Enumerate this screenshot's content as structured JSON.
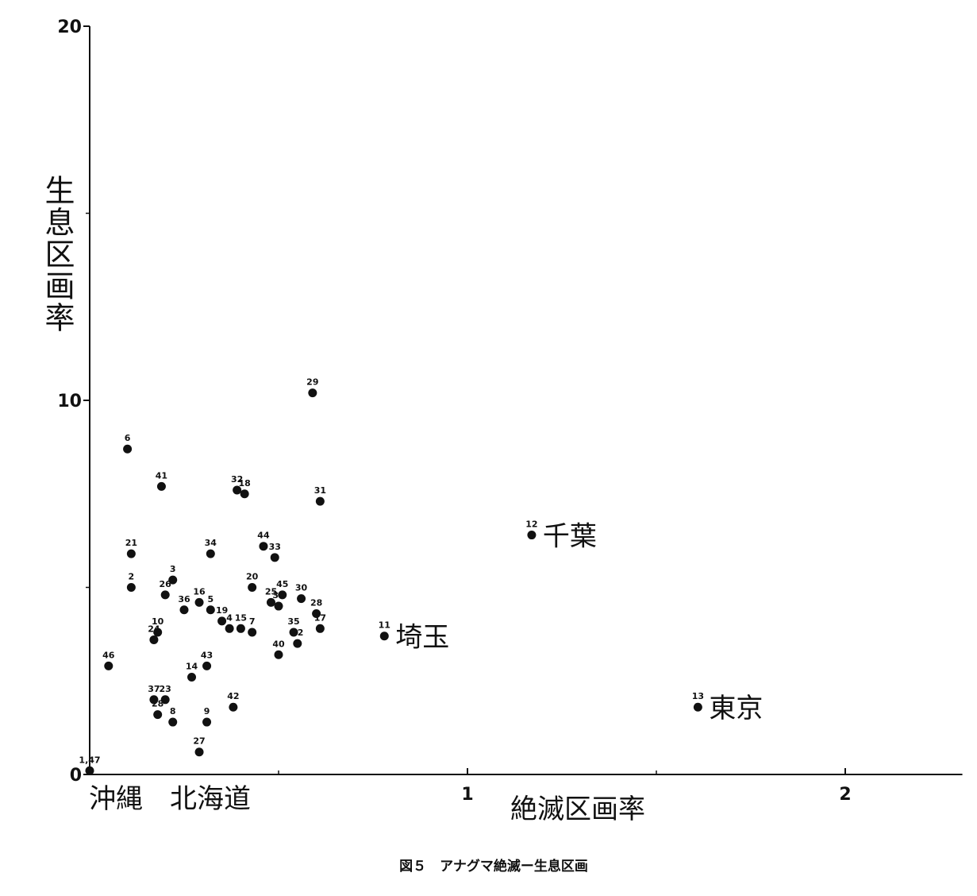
{
  "chart_data": {
    "type": "scatter",
    "xlabel": "絶滅区画率",
    "ylabel": "生息区画率",
    "caption": "図５　アナグマ絶滅ー生息区画",
    "x_axis_note": "沖縄　北海道",
    "xlim": [
      0,
      2.31
    ],
    "ylim": [
      0,
      20
    ],
    "xticks": [
      1,
      2
    ],
    "yticks": [
      0,
      10,
      20
    ],
    "xminor": [
      0.5,
      1.5
    ],
    "yminor": [
      5,
      15
    ],
    "color": "#111",
    "point_labels": [
      "1,47",
      "46",
      "6",
      "41",
      "21",
      "2",
      "3",
      "26",
      "36",
      "16",
      "5",
      "19",
      "4",
      "15",
      "7",
      "10",
      "24",
      "14",
      "43",
      "37",
      "23",
      "28",
      "8",
      "9",
      "27",
      "42",
      "34",
      "32",
      "18",
      "29",
      "31",
      "44",
      "33",
      "20",
      "45",
      "25",
      "39",
      "30",
      "28",
      "17",
      "35",
      "22",
      "40",
      "11",
      "12",
      "13"
    ],
    "place_names": [
      null,
      null,
      null,
      null,
      null,
      null,
      null,
      null,
      null,
      null,
      null,
      null,
      null,
      null,
      null,
      null,
      null,
      null,
      null,
      null,
      null,
      null,
      null,
      null,
      null,
      null,
      null,
      null,
      null,
      null,
      null,
      null,
      null,
      null,
      null,
      null,
      null,
      null,
      null,
      null,
      null,
      null,
      null,
      "埼玉",
      "千葉",
      "東京"
    ],
    "x": [
      0.0,
      0.05,
      0.1,
      0.19,
      0.11,
      0.11,
      0.22,
      0.2,
      0.25,
      0.29,
      0.32,
      0.35,
      0.37,
      0.4,
      0.43,
      0.18,
      0.17,
      0.27,
      0.31,
      0.17,
      0.2,
      0.18,
      0.22,
      0.31,
      0.29,
      0.38,
      0.32,
      0.39,
      0.41,
      0.59,
      0.61,
      0.46,
      0.49,
      0.43,
      0.51,
      0.48,
      0.5,
      0.56,
      0.6,
      0.61,
      0.54,
      0.55,
      0.5,
      0.78,
      1.17,
      1.61
    ],
    "values": [
      0.1,
      2.9,
      8.7,
      7.7,
      5.9,
      5.0,
      5.2,
      4.8,
      4.4,
      4.6,
      4.4,
      4.1,
      3.9,
      3.9,
      3.8,
      3.8,
      3.6,
      2.6,
      2.9,
      2.0,
      2.0,
      1.6,
      1.4,
      1.4,
      0.6,
      1.8,
      5.9,
      7.6,
      7.5,
      10.2,
      7.3,
      6.1,
      5.8,
      5.0,
      4.8,
      4.6,
      4.5,
      4.7,
      4.3,
      3.9,
      3.8,
      3.5,
      3.2,
      3.7,
      6.4,
      1.8
    ]
  }
}
